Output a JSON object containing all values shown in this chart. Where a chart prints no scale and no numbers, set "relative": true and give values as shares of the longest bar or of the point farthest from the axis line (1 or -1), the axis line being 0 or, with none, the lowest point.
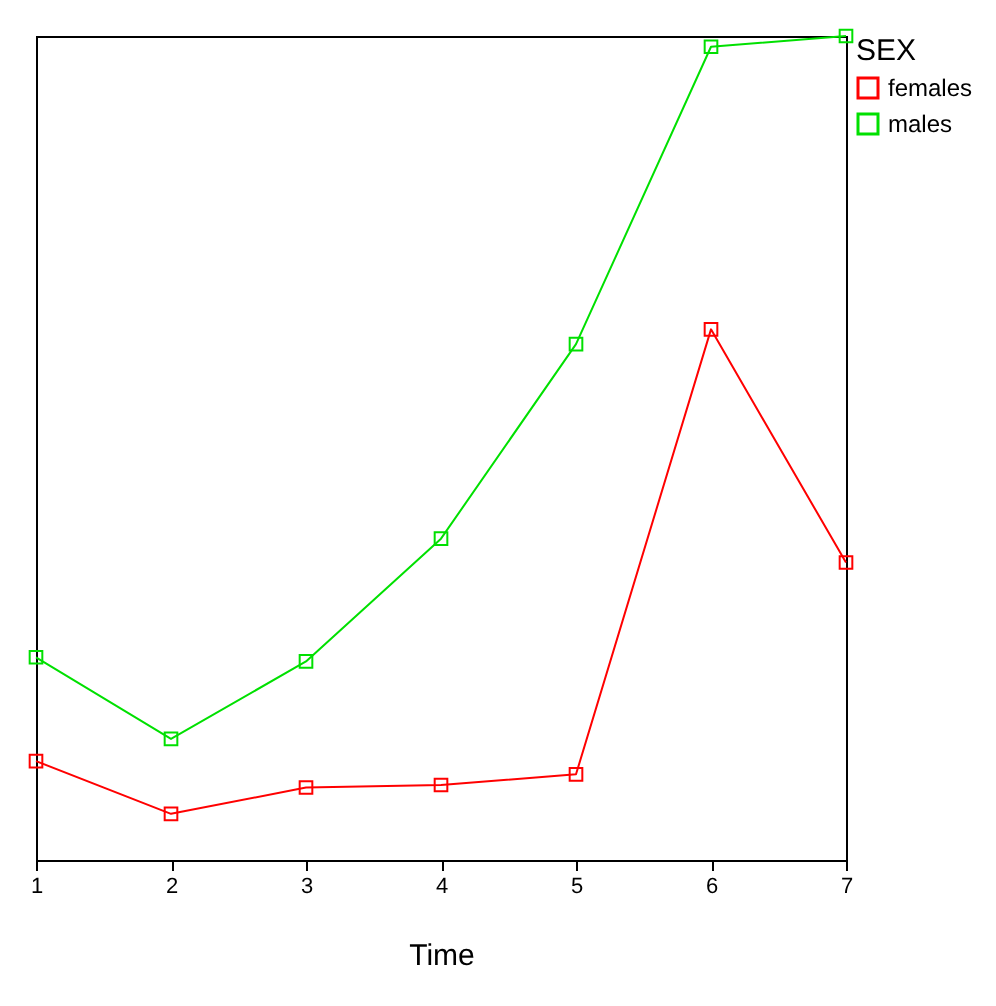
{
  "chart_data": {
    "type": "line",
    "xlabel": "Time",
    "legend_title": "SEX",
    "relative": true,
    "x": [
      1,
      2,
      3,
      4,
      5,
      6,
      7
    ],
    "xlim": [
      1,
      7
    ],
    "xticks": [
      1,
      2,
      3,
      4,
      5,
      6,
      7
    ],
    "series": [
      {
        "name": "females",
        "color": "#ff0000",
        "values": [
          0.12,
          0.056,
          0.088,
          0.091,
          0.104,
          0.644,
          0.361
        ]
      },
      {
        "name": "males",
        "color": "#00e000",
        "values": [
          0.246,
          0.147,
          0.241,
          0.39,
          0.626,
          0.987,
          1
        ]
      }
    ],
    "marker": "square",
    "legend": "right",
    "grid": false
  }
}
